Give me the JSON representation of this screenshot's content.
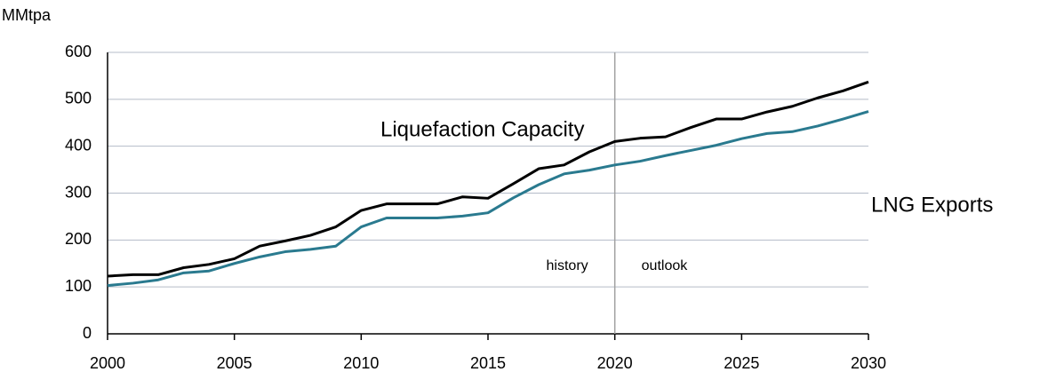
{
  "chart_data": {
    "type": "line",
    "y_label": "MMtpa",
    "x": [
      2000,
      2001,
      2002,
      2003,
      2004,
      2005,
      2006,
      2007,
      2008,
      2009,
      2010,
      2011,
      2012,
      2013,
      2014,
      2015,
      2016,
      2017,
      2018,
      2019,
      2020,
      2021,
      2022,
      2023,
      2024,
      2025,
      2026,
      2027,
      2028,
      2029,
      2030
    ],
    "series": [
      {
        "name": "Liquefaction Capacity",
        "color": "#000000",
        "values": [
          123,
          126,
          126,
          141,
          148,
          160,
          187,
          198,
          210,
          228,
          263,
          277,
          277,
          277,
          292,
          289,
          320,
          352,
          360,
          388,
          410,
          417,
          420,
          440,
          458,
          458,
          473,
          485,
          503,
          518,
          537
        ]
      },
      {
        "name": "LNG Exports",
        "color": "#2a7a8f",
        "values": [
          103,
          108,
          115,
          130,
          134,
          150,
          164,
          175,
          180,
          187,
          228,
          247,
          247,
          247,
          251,
          258,
          290,
          318,
          341,
          349,
          360,
          368,
          380,
          391,
          402,
          416,
          427,
          431,
          443,
          458,
          474
        ]
      }
    ],
    "xlim": [
      2000,
      2030
    ],
    "xticks": [
      2000,
      2005,
      2010,
      2015,
      2020,
      2025,
      2030
    ],
    "ylim": [
      0,
      600
    ],
    "yticks": [
      0,
      100,
      200,
      300,
      400,
      500,
      600
    ],
    "grid": true,
    "divider_x": 2020,
    "annotations": [
      "history",
      "outlook"
    ]
  }
}
